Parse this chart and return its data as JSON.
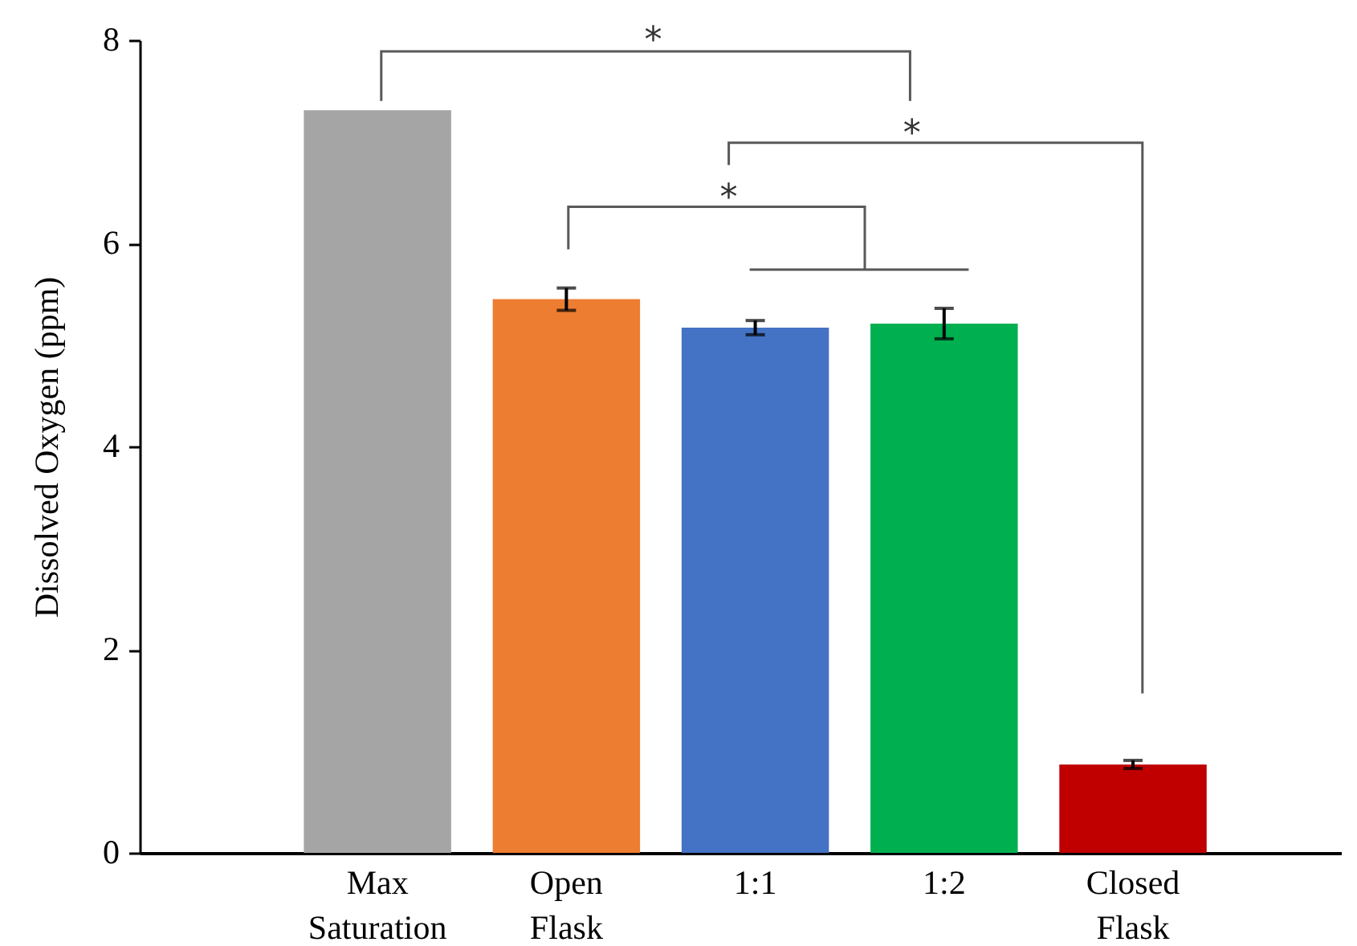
{
  "chart_data": {
    "type": "bar",
    "categories": [
      "Max Saturation",
      "Open Flask",
      "1:1",
      "1:2",
      "Closed Flask"
    ],
    "values": [
      7.31,
      5.45,
      5.17,
      5.21,
      0.87
    ],
    "errors": [
      null,
      0.11,
      0.07,
      0.15,
      0.04
    ],
    "colors": [
      "#a5a5a5",
      "#ed7d31",
      "#4472c4",
      "#00b050",
      "#c00000"
    ],
    "ylabel": "Dissolved Oxygen (ppm)",
    "ylim": [
      0,
      8
    ],
    "yticks": [
      0,
      2,
      4,
      6,
      8
    ],
    "annotations": [
      "*",
      "*",
      "*"
    ]
  }
}
